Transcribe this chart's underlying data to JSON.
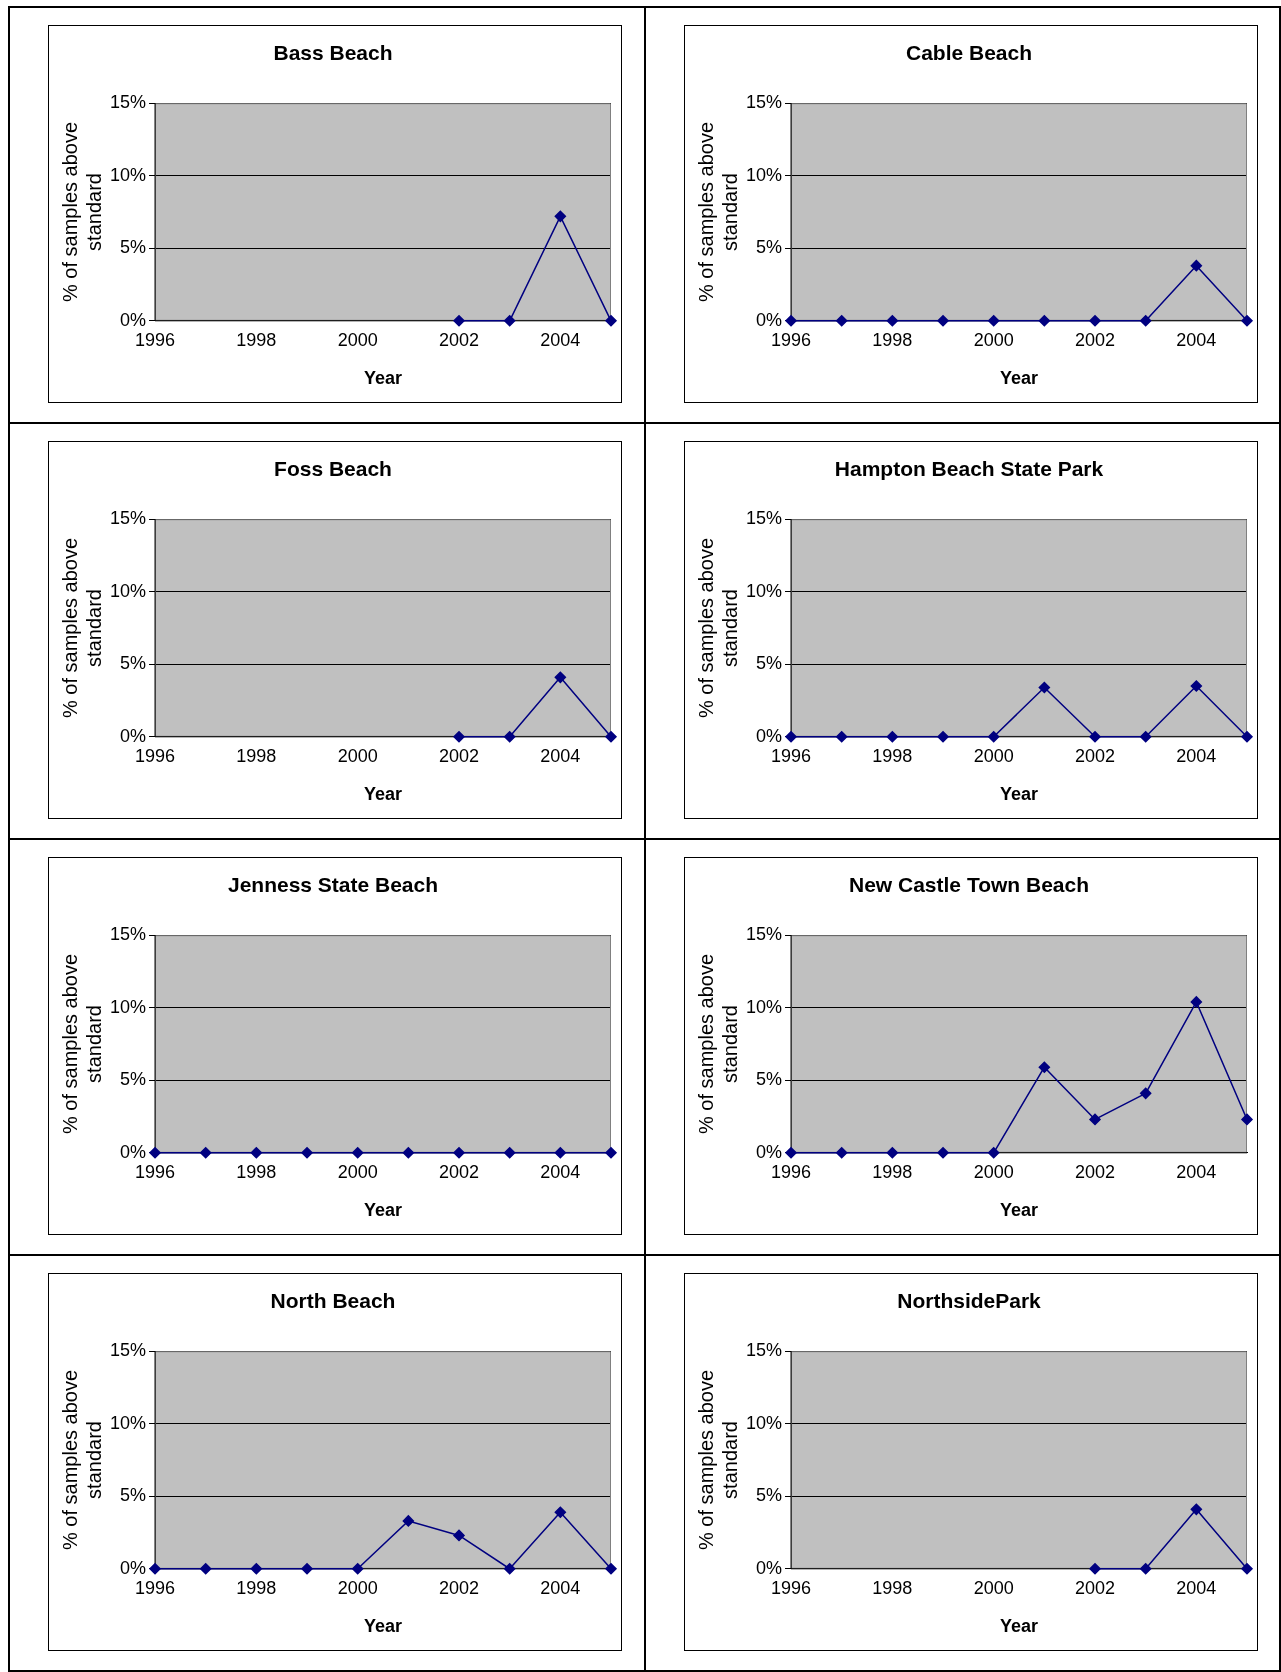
{
  "chart_data": [
    {
      "type": "line",
      "title": "Bass Beach",
      "xlabel": "Year",
      "ylabel": "% of samples above standard",
      "x": [
        2002,
        2003,
        2004,
        2005
      ],
      "values": [
        0,
        0,
        7.2,
        0
      ],
      "color": "#000080",
      "marker": "diamond",
      "grid": "y",
      "xlim": [
        1996,
        2005
      ],
      "xticks": [
        1996,
        1998,
        2000,
        2002,
        2004
      ],
      "ylim": [
        0,
        15
      ],
      "yticks": [
        {
          "value": 0,
          "label": "0%"
        },
        {
          "value": 5,
          "label": "5%"
        },
        {
          "value": 10,
          "label": "10%"
        },
        {
          "value": 15,
          "label": "15%"
        }
      ]
    },
    {
      "type": "line",
      "title": "Cable Beach",
      "xlabel": "Year",
      "ylabel": "% of samples above standard",
      "x": [
        1996,
        1997,
        1998,
        1999,
        2000,
        2001,
        2002,
        2003,
        2004,
        2005
      ],
      "values": [
        0,
        0,
        0,
        0,
        0,
        0,
        0,
        0,
        3.8,
        0
      ],
      "color": "#000080",
      "marker": "diamond",
      "grid": "y",
      "xlim": [
        1996,
        2005
      ],
      "xticks": [
        1996,
        1998,
        2000,
        2002,
        2004
      ],
      "ylim": [
        0,
        15
      ],
      "yticks": [
        {
          "value": 0,
          "label": "0%"
        },
        {
          "value": 5,
          "label": "5%"
        },
        {
          "value": 10,
          "label": "10%"
        },
        {
          "value": 15,
          "label": "15%"
        }
      ]
    },
    {
      "type": "line",
      "title": "Foss Beach",
      "xlabel": "Year",
      "ylabel": "% of samples above standard",
      "x": [
        2002,
        2003,
        2004,
        2005
      ],
      "values": [
        0,
        0,
        4.1,
        0
      ],
      "color": "#000080",
      "marker": "diamond",
      "grid": "y",
      "xlim": [
        1996,
        2005
      ],
      "xticks": [
        1996,
        1998,
        2000,
        2002,
        2004
      ],
      "ylim": [
        0,
        15
      ],
      "yticks": [
        {
          "value": 0,
          "label": "0%"
        },
        {
          "value": 5,
          "label": "5%"
        },
        {
          "value": 10,
          "label": "10%"
        },
        {
          "value": 15,
          "label": "15%"
        }
      ]
    },
    {
      "type": "line",
      "title": "Hampton Beach State Park",
      "xlabel": "Year",
      "ylabel": "% of samples above standard",
      "x": [
        1996,
        1997,
        1998,
        1999,
        2000,
        2001,
        2002,
        2003,
        2004,
        2005
      ],
      "values": [
        0,
        0,
        0,
        0,
        0,
        3.4,
        0,
        0,
        3.5,
        0
      ],
      "color": "#000080",
      "marker": "diamond",
      "grid": "y",
      "xlim": [
        1996,
        2005
      ],
      "xticks": [
        1996,
        1998,
        2000,
        2002,
        2004
      ],
      "ylim": [
        0,
        15
      ],
      "yticks": [
        {
          "value": 0,
          "label": "0%"
        },
        {
          "value": 5,
          "label": "5%"
        },
        {
          "value": 10,
          "label": "10%"
        },
        {
          "value": 15,
          "label": "15%"
        }
      ]
    },
    {
      "type": "line",
      "title": "Jenness State Beach",
      "xlabel": "Year",
      "ylabel": "% of samples above standard",
      "x": [
        1996,
        1997,
        1998,
        1999,
        2000,
        2001,
        2002,
        2003,
        2004,
        2005
      ],
      "values": [
        0,
        0,
        0,
        0,
        0,
        0,
        0,
        0,
        0,
        0
      ],
      "color": "#000080",
      "marker": "diamond",
      "grid": "y",
      "xlim": [
        1996,
        2005
      ],
      "xticks": [
        1996,
        1998,
        2000,
        2002,
        2004
      ],
      "ylim": [
        0,
        15
      ],
      "yticks": [
        {
          "value": 0,
          "label": "0%"
        },
        {
          "value": 5,
          "label": "5%"
        },
        {
          "value": 10,
          "label": "10%"
        },
        {
          "value": 15,
          "label": "15%"
        }
      ]
    },
    {
      "type": "line",
      "title": "New Castle Town Beach",
      "xlabel": "Year",
      "ylabel": "% of samples above standard",
      "x": [
        1996,
        1997,
        1998,
        1999,
        2000,
        2001,
        2002,
        2003,
        2004,
        2005
      ],
      "values": [
        0,
        0,
        0,
        0,
        0,
        5.9,
        2.3,
        4.1,
        10.4,
        2.3
      ],
      "color": "#000080",
      "marker": "diamond",
      "grid": "y",
      "xlim": [
        1996,
        2005
      ],
      "xticks": [
        1996,
        1998,
        2000,
        2002,
        2004
      ],
      "ylim": [
        0,
        15
      ],
      "yticks": [
        {
          "value": 0,
          "label": "0%"
        },
        {
          "value": 5,
          "label": "5%"
        },
        {
          "value": 10,
          "label": "10%"
        },
        {
          "value": 15,
          "label": "15%"
        }
      ]
    },
    {
      "type": "line",
      "title": "North Beach",
      "xlabel": "Year",
      "ylabel": "% of samples above standard",
      "x": [
        1996,
        1997,
        1998,
        1999,
        2000,
        2001,
        2002,
        2003,
        2004,
        2005
      ],
      "values": [
        0,
        0,
        0,
        0,
        0,
        3.3,
        2.3,
        0,
        3.9,
        0
      ],
      "color": "#000080",
      "marker": "diamond",
      "grid": "y",
      "xlim": [
        1996,
        2005
      ],
      "xticks": [
        1996,
        1998,
        2000,
        2002,
        2004
      ],
      "ylim": [
        0,
        15
      ],
      "yticks": [
        {
          "value": 0,
          "label": "0%"
        },
        {
          "value": 5,
          "label": "5%"
        },
        {
          "value": 10,
          "label": "10%"
        },
        {
          "value": 15,
          "label": "15%"
        }
      ]
    },
    {
      "type": "line",
      "title": "NorthsidePark",
      "xlabel": "Year",
      "ylabel": "% of samples above standard",
      "x": [
        2002,
        2003,
        2004,
        2005
      ],
      "values": [
        0,
        0,
        4.1,
        0
      ],
      "color": "#000080",
      "marker": "diamond",
      "grid": "y",
      "xlim": [
        1996,
        2005
      ],
      "xticks": [
        1996,
        1998,
        2000,
        2002,
        2004
      ],
      "ylim": [
        0,
        15
      ],
      "yticks": [
        {
          "value": 0,
          "label": "0%"
        },
        {
          "value": 5,
          "label": "5%"
        },
        {
          "value": 10,
          "label": "10%"
        },
        {
          "value": 15,
          "label": "15%"
        }
      ]
    }
  ]
}
